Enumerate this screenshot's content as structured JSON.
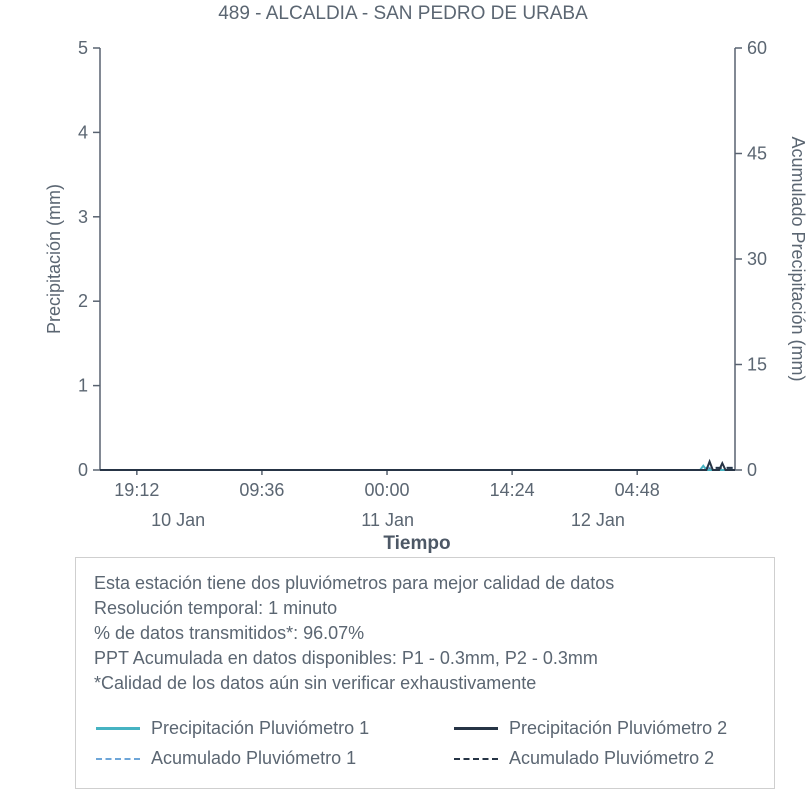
{
  "chart_data": {
    "type": "line",
    "title": "489 - ALCALDIA - SAN PEDRO DE URABA",
    "xlabel": "Tiempo",
    "ylabel_left": "Precipitación (mm)",
    "ylabel_right": "Acumulado Precipitación (mm)",
    "grid": false,
    "y_left": {
      "min": 0,
      "max": 5,
      "ticks": [
        0,
        1,
        2,
        3,
        4,
        5
      ]
    },
    "y_right": {
      "min": 0,
      "max": 60,
      "ticks": [
        0,
        15,
        30,
        45,
        60
      ]
    },
    "x_ticks": [
      {
        "label": "19:12",
        "pos": 0.058
      },
      {
        "label": "09:36",
        "pos": 0.255
      },
      {
        "label": "00:00",
        "pos": 0.452
      },
      {
        "label": "14:24",
        "pos": 0.649
      },
      {
        "label": "04:48",
        "pos": 0.846
      }
    ],
    "x_dates": [
      {
        "label": "10 Jan",
        "pos": 0.123
      },
      {
        "label": "11 Jan",
        "pos": 0.453
      },
      {
        "label": "12 Jan",
        "pos": 0.784
      }
    ],
    "series": [
      {
        "name": "Acumulado Pluviómetro 1",
        "axis": "right",
        "line": "dashed",
        "color": "#6ea6d8",
        "x": [
          0,
          0.945,
          0.955,
          1
        ],
        "y": [
          0,
          0,
          0.3,
          0.3
        ]
      },
      {
        "name": "Acumulado Pluviómetro 2",
        "axis": "right",
        "line": "dashed",
        "color": "#263445",
        "x": [
          0,
          0.958,
          0.968,
          1
        ],
        "y": [
          0,
          0,
          0.3,
          0.3
        ]
      },
      {
        "name": "Precipitación Pluviómetro 1",
        "axis": "left",
        "line": "solid",
        "color": "#46b3c2",
        "x": [
          0,
          0.945,
          0.95,
          0.955,
          1
        ],
        "y": [
          0,
          0,
          0.05,
          0,
          0
        ]
      },
      {
        "name": "Precipitación Pluviómetro 2",
        "axis": "left",
        "line": "solid",
        "color": "#263445",
        "x": [
          0,
          0.955,
          0.96,
          0.965,
          0.975,
          0.98,
          0.985,
          1
        ],
        "y": [
          0,
          0,
          0.1,
          0,
          0,
          0.08,
          0,
          0
        ]
      }
    ]
  },
  "notes": {
    "lines": [
      "Esta estación tiene dos pluviómetros para mejor calidad de datos",
      "Resolución temporal: 1 minuto",
      "% de datos transmitidos*: 96.07%",
      "PPT Acumulada en datos disponibles: P1 - 0.3mm, P2 - 0.3mm",
      "*Calidad de los datos aún sin verificar exhaustivamente"
    ]
  },
  "legend": {
    "items": [
      {
        "name": "Precipitación Pluviómetro 1",
        "line": "solid",
        "color": "#46b3c2"
      },
      {
        "name": "Precipitación Pluviómetro 2",
        "line": "solid",
        "color": "#263445"
      },
      {
        "name": "Acumulado Pluviómetro 1",
        "line": "dashed",
        "color": "#6ea6d8"
      },
      {
        "name": "Acumulado Pluviómetro 2",
        "line": "dashed",
        "color": "#263445"
      }
    ]
  },
  "colors": {
    "axis": "#586270",
    "tick_text": "#5b6672",
    "title_text": "#5b6672"
  }
}
